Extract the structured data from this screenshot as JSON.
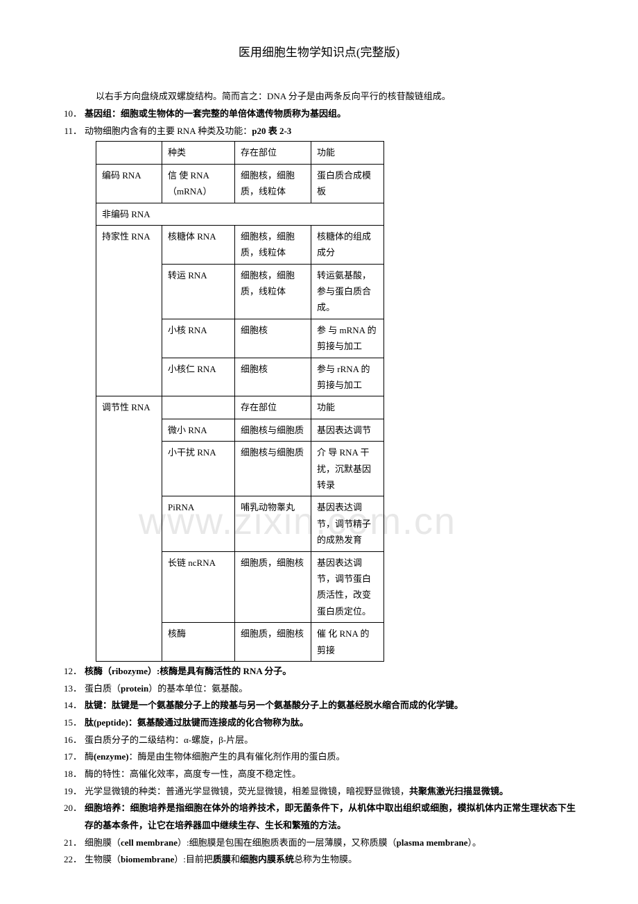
{
  "page_title": "医用细胞生物学知识点(完整版)",
  "intro_text": "以右手方向盘绕成双螺旋结构。简而言之：DNA 分子是由两条反向平行的核苷酸链组成。",
  "item10": {
    "num": "10．",
    "text": "基因组：细胞或生物体的一套完整的单倍体遗传物质称为基因组。"
  },
  "item11": {
    "num": "11．",
    "text": "动物细胞内含有的主要 RNA 种类及功能：",
    "ref": "p20 表 2-3"
  },
  "table": {
    "header": [
      "",
      "种类",
      "存在部位",
      "功能"
    ],
    "rows": [
      {
        "c1": "编码 RNA",
        "c2": "信 使 RNA （mRNA）",
        "c3": "细胞核，细胞质，线粒体",
        "c4": "蛋白质合成模板"
      },
      {
        "span": "非编码 RNA"
      },
      {
        "c1": "持家性 RNA",
        "c2": "核糖体 RNA",
        "c3": "细胞核，细胞质，线粒体",
        "c4": "核糖体的组成成分"
      },
      {
        "c1": "",
        "c2": "转运 RNA",
        "c3": "细胞核，细胞质，线粒体",
        "c4": "转运氨基酸，参与蛋白质合成。"
      },
      {
        "c1": "",
        "c2": "小核 RNA",
        "c3": "细胞核",
        "c4": "参 与 mRNA 的剪接与加工"
      },
      {
        "c1": "",
        "c2": "小核仁 RNA",
        "c3": "细胞核",
        "c4": "参与 rRNA 的剪接与加工"
      },
      {
        "c1": "调节性 RNA",
        "c2": "",
        "c3": "存在部位",
        "c4": "功能"
      },
      {
        "c1": "",
        "c2": "微小 RNA",
        "c3": "细胞核与细胞质",
        "c4": "基因表达调节"
      },
      {
        "c1": "",
        "c2": "小干扰 RNA",
        "c3": "细胞核与细胞质",
        "c4": "介 导 RNA 干扰，沉默基因转录"
      },
      {
        "c1": "",
        "c2": "PiRNA",
        "c3": "哺乳动物睾丸",
        "c4": "基因表达调节，调节精子的成熟发育"
      },
      {
        "c1": "",
        "c2": "长链 ncRNA",
        "c3": "细胞质，细胞核",
        "c4": "基因表达调节，调节蛋白质活性，改变蛋白质定位。"
      },
      {
        "c1": "",
        "c2": "核酶",
        "c3": "细胞质，细胞核",
        "c4": "催 化 RNA 的剪接"
      }
    ]
  },
  "item12": {
    "num": "12．",
    "text_bold": "核酶（ribozyme）:核酶是具有酶活性的 RNA 分子。"
  },
  "item13": {
    "num": "13．",
    "text": "蛋白质（",
    "bold": "protein",
    "text2": "）的基本单位：氨基酸。"
  },
  "item14": {
    "num": "14．",
    "text_bold": "肽键：肽键是一个氨基酸分子上的羧基与另一个氨基酸分子上的氨基经脱水缩合而成的化学键。"
  },
  "item15": {
    "num": "15．",
    "text_bold": "肽(peptide)：氨基酸通过肽键而连接成的化合物称为肽。"
  },
  "item16": {
    "num": "16．",
    "text": "蛋白质分子的二级结构：α-螺旋，β-片层。"
  },
  "item17": {
    "num": "17．",
    "text": "酶",
    "bold": "(enzyme)",
    "text2": "：酶是由生物体细胞产生的具有催化剂作用的蛋白质。"
  },
  "item18": {
    "num": "18．",
    "text": "酶的特性：高催化效率，高度专一性，高度不稳定性。"
  },
  "item19": {
    "num": "19．",
    "text": "光学显微镜的种类：普通光学显微镜，荧光显微镜，相差显微镜，暗视野显微镜，",
    "bold": "共聚焦激光扫描显微镜。"
  },
  "item20": {
    "num": "20．",
    "text_bold": "细胞培养：细胞培养是指细胞在体外的培养技术，即无菌条件下，从机体中取出组织或细胞，模拟机体内正常生理状态下生存的基本条件，让它在培养器皿中继续生存、生长和繁殖的方法。"
  },
  "item21": {
    "num": "21．",
    "text": "细胞膜（",
    "bold1": "cell membrane",
    "text2": "）:细胞膜是包围在细胞质表面的一层薄膜，又称质膜（",
    "bold2": "plasma membrane",
    "text3": "）。"
  },
  "item22": {
    "num": "22．",
    "text": "生物膜（",
    "bold1": "biomembrane",
    "text2": "）:目前把",
    "bold2": "质膜",
    "text3": "和",
    "bold3": "细胞内膜系统",
    "text4": "总称为生物膜。"
  },
  "watermark": "www.zixin.com.cn"
}
